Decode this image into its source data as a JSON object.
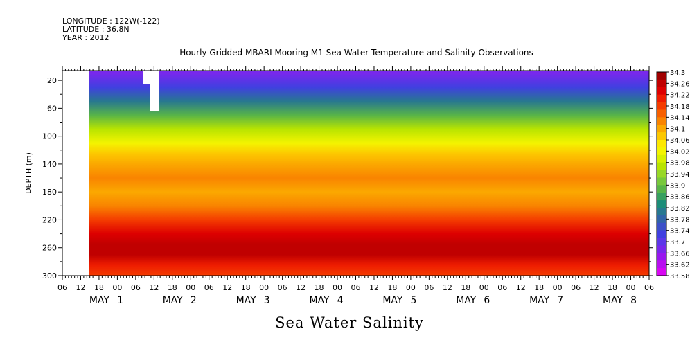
{
  "header": {
    "longitude": "LONGITUDE : 122W(-122)",
    "latitude": "LATITUDE : 36.8N",
    "year": "YEAR : 2012"
  },
  "chart_data": {
    "type": "heatmap",
    "title": "Hourly Gridded MBARI Mooring M1 Sea Water Temperature and Salinity Observations",
    "bottom_label": "Sea Water Salinity",
    "ylabel": "DEPTH (m)",
    "xlabel": "",
    "y_ticks": [
      "20",
      "60",
      "100",
      "140",
      "180",
      "220",
      "260",
      "300"
    ],
    "x_hour_ticks": [
      "06",
      "12",
      "18",
      "00",
      "06",
      "12",
      "18",
      "00",
      "06",
      "12",
      "18",
      "00",
      "06",
      "12",
      "18",
      "00",
      "06",
      "12",
      "18",
      "00",
      "06",
      "12",
      "18",
      "00",
      "06",
      "12",
      "18",
      "00",
      "06",
      "12",
      "18",
      "00",
      "06"
    ],
    "x_day_labels": [
      {
        "month": "MAY",
        "day": "1"
      },
      {
        "month": "MAY",
        "day": "2"
      },
      {
        "month": "MAY",
        "day": "3"
      },
      {
        "month": "MAY",
        "day": "4"
      },
      {
        "month": "MAY",
        "day": "5"
      },
      {
        "month": "MAY",
        "day": "6"
      },
      {
        "month": "MAY",
        "day": "7"
      },
      {
        "month": "MAY",
        "day": "8"
      }
    ],
    "colorbar_labels": [
      "34.3",
      "34.26",
      "34.22",
      "34.18",
      "34.14",
      "34.1",
      "34.06",
      "34.02",
      "33.98",
      "33.94",
      "33.9",
      "33.86",
      "33.82",
      "33.78",
      "33.74",
      "33.7",
      "33.66",
      "33.62",
      "33.58"
    ],
    "colorbar_colors": [
      "#a00000",
      "#c00000",
      "#dd0000",
      "#ee1c00",
      "#f43c00",
      "#f76000",
      "#f98400",
      "#fba800",
      "#fcc800",
      "#fde800",
      "#f4f400",
      "#d8f000",
      "#b8e400",
      "#98d828",
      "#78c83c",
      "#58b448",
      "#38a060",
      "#1c8c78",
      "#287890",
      "#3064a8",
      "#3c50c8",
      "#4040e0",
      "#5c38e8",
      "#7828ec",
      "#9818ee",
      "#b810f0",
      "#d808f2"
    ],
    "depth_profile": [
      {
        "depth": 10,
        "salinity": 33.66
      },
      {
        "depth": 30,
        "salinity": 33.72
      },
      {
        "depth": 50,
        "salinity": 33.8
      },
      {
        "depth": 70,
        "salinity": 33.88
      },
      {
        "depth": 90,
        "salinity": 33.96
      },
      {
        "depth": 110,
        "salinity": 34.02
      },
      {
        "depth": 125,
        "salinity": 34.08
      },
      {
        "depth": 140,
        "salinity": 34.12
      },
      {
        "depth": 160,
        "salinity": 34.14
      },
      {
        "depth": 180,
        "salinity": 34.12
      },
      {
        "depth": 200,
        "salinity": 34.14
      },
      {
        "depth": 220,
        "salinity": 34.18
      },
      {
        "depth": 240,
        "salinity": 34.24
      },
      {
        "depth": 255,
        "salinity": 34.28
      },
      {
        "depth": 270,
        "salinity": 34.26
      },
      {
        "depth": 285,
        "salinity": 34.22
      },
      {
        "depth": 300,
        "salinity": 34.2
      }
    ],
    "ylim": [
      300,
      6
    ],
    "clim": [
      33.58,
      34.3
    ]
  }
}
